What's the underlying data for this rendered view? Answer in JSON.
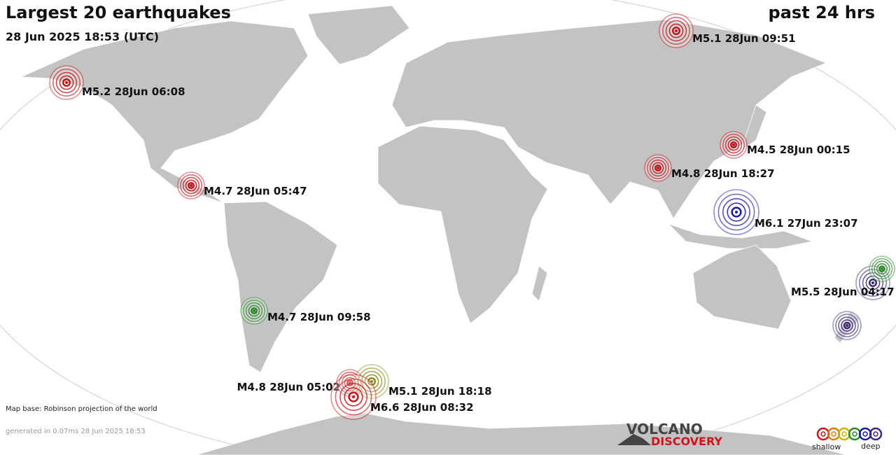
{
  "header": {
    "title": "Largest 20 earthquakes",
    "period": "past 24 hrs",
    "timestamp": "28 Jun 2025 18:53 (UTC)"
  },
  "quakes": [
    {
      "label": "M5.1 28Jun 09:51",
      "color": "#c0161c"
    },
    {
      "label": "M5.2 28Jun 06:08",
      "color": "#c0161c"
    },
    {
      "label": "M4.5 28Jun 00:15",
      "color": "#c0161c"
    },
    {
      "label": "M4.8 28Jun 18:27",
      "color": "#c0161c"
    },
    {
      "label": "M4.7 28Jun 05:47",
      "color": "#c0161c"
    },
    {
      "label": "M6.1 27Jun 23:07",
      "color": "#1a1aa8"
    },
    {
      "label": "M5.5 28Jun 04:17",
      "color": "#3d2a78"
    },
    {
      "color": "#2a8a2a"
    },
    {
      "color": "#3d2a78"
    },
    {
      "label": "M4.7 28Jun 09:58",
      "color": "#2a8a2a"
    },
    {
      "label": "M4.8 28Jun 05:02",
      "color": "#c0161c"
    },
    {
      "label": "M5.1 28Jun 18:18",
      "color": "#8a8a1a"
    },
    {
      "label": "M6.6 28Jun 08:32",
      "color": "#c0161c"
    }
  ],
  "footer": {
    "map_base": "Map base: Robinson projection of the world",
    "generated": "generated in 0.07ms 28 Jun 2025 18:53"
  },
  "logo": {
    "top": "VOLCANO",
    "bottom": "DISCOVERY"
  },
  "legend": {
    "shallow": "shallow",
    "deep": "deep",
    "colors": [
      "#c0161c",
      "#e07a10",
      "#c8b400",
      "#2a8a2a",
      "#1a1aa8",
      "#3d2a78"
    ]
  }
}
